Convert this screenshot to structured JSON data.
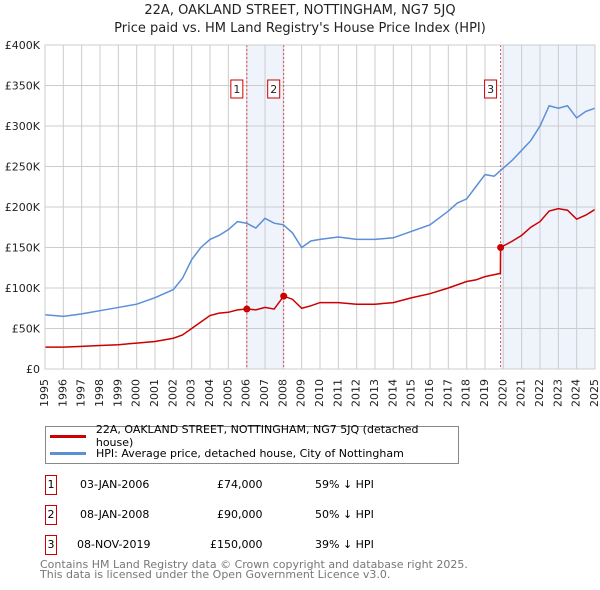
{
  "chart_data": {
    "type": "line",
    "title": "22A, OAKLAND STREET, NOTTINGHAM, NG7 5JQ",
    "subtitle": "Price paid vs. HM Land Registry's House Price Index (HPI)",
    "xlim": [
      1995,
      2025
    ],
    "ylim": [
      0,
      400000
    ],
    "yticks": [
      {
        "v": 0,
        "l": "£0"
      },
      {
        "v": 50000,
        "l": "£50K"
      },
      {
        "v": 100000,
        "l": "£100K"
      },
      {
        "v": 150000,
        "l": "£150K"
      },
      {
        "v": 200000,
        "l": "£200K"
      },
      {
        "v": 250000,
        "l": "£250K"
      },
      {
        "v": 300000,
        "l": "£300K"
      },
      {
        "v": 350000,
        "l": "£350K"
      },
      {
        "v": 400000,
        "l": "£400K"
      }
    ],
    "xticks": [
      "1995",
      "1996",
      "1997",
      "1998",
      "1999",
      "2000",
      "2001",
      "2002",
      "2003",
      "2004",
      "2005",
      "2006",
      "2007",
      "2008",
      "2009",
      "2010",
      "2011",
      "2012",
      "2013",
      "2014",
      "2015",
      "2016",
      "2017",
      "2018",
      "2019",
      "2020",
      "2021",
      "2022",
      "2023",
      "2024",
      "2025"
    ],
    "series": [
      {
        "name": "22A, OAKLAND STREET, NOTTINGHAM, NG7 5JQ (detached house)",
        "color": "#cc0000",
        "x": [
          1995,
          1996,
          1997,
          1998,
          1999,
          2000,
          2001,
          2002,
          2002.5,
          2003,
          2003.5,
          2004,
          2004.5,
          2005,
          2005.5,
          2006.01,
          2006.5,
          2007,
          2007.5,
          2008.02,
          2008.5,
          2009,
          2009.5,
          2010,
          2011,
          2012,
          2013,
          2014,
          2015,
          2016,
          2017,
          2018,
          2018.5,
          2019,
          2019.84,
          2019.85,
          2020.5,
          2021,
          2021.5,
          2022,
          2022.5,
          2023,
          2023.5,
          2024,
          2024.5,
          2025
        ],
        "y": [
          27000,
          27000,
          28000,
          29000,
          30000,
          32000,
          34000,
          38000,
          42000,
          50000,
          58000,
          66000,
          69000,
          70000,
          73000,
          74000,
          73000,
          76000,
          74000,
          90000,
          86000,
          75000,
          78000,
          82000,
          82000,
          80000,
          80000,
          82000,
          88000,
          93000,
          100000,
          108000,
          110000,
          114000,
          118000,
          150000,
          158000,
          165000,
          175000,
          182000,
          195000,
          198000,
          196000,
          185000,
          190000,
          197000
        ]
      },
      {
        "name": "HPI: Average price, detached house, City of Nottingham",
        "color": "#5b8fd6",
        "x": [
          1995,
          1996,
          1997,
          1998,
          1999,
          2000,
          2001,
          2002,
          2002.5,
          2003,
          2003.5,
          2004,
          2004.5,
          2005,
          2005.5,
          2006,
          2006.5,
          2007,
          2007.5,
          2008,
          2008.5,
          2009,
          2009.5,
          2010,
          2011,
          2012,
          2013,
          2014,
          2015,
          2016,
          2017,
          2017.5,
          2018,
          2018.5,
          2019,
          2019.5,
          2020,
          2020.5,
          2021,
          2021.5,
          2022,
          2022.5,
          2023,
          2023.5,
          2024,
          2024.5,
          2025
        ],
        "y": [
          67000,
          65000,
          68000,
          72000,
          76000,
          80000,
          88000,
          98000,
          112000,
          135000,
          150000,
          160000,
          165000,
          172000,
          182000,
          180000,
          174000,
          186000,
          180000,
          178000,
          168000,
          150000,
          158000,
          160000,
          163000,
          160000,
          160000,
          162000,
          170000,
          178000,
          195000,
          205000,
          210000,
          225000,
          240000,
          238000,
          248000,
          258000,
          270000,
          282000,
          300000,
          325000,
          322000,
          325000,
          310000,
          318000,
          322000
        ]
      }
    ],
    "sales": [
      {
        "n": "1",
        "x": 2006.01,
        "y": 74000
      },
      {
        "n": "2",
        "x": 2008.02,
        "y": 90000
      },
      {
        "n": "3",
        "x": 2019.85,
        "y": 150000
      }
    ],
    "shaded": [
      [
        2006.01,
        2008.02
      ],
      [
        2019.85,
        2025
      ]
    ]
  },
  "legend": [
    "22A, OAKLAND STREET, NOTTINGHAM, NG7 5JQ (detached house)",
    "HPI: Average price, detached house, City of Nottingham"
  ],
  "table": [
    {
      "n": "1",
      "date": "03-JAN-2006",
      "price": "£74,000",
      "hpi": "59% ↓ HPI"
    },
    {
      "n": "2",
      "date": "08-JAN-2008",
      "price": "£90,000",
      "hpi": "50% ↓ HPI"
    },
    {
      "n": "3",
      "date": "08-NOV-2019",
      "price": "£150,000",
      "hpi": "39% ↓ HPI"
    }
  ],
  "footer": [
    "Contains HM Land Registry data © Crown copyright and database right 2025.",
    "This data is licensed under the Open Government Licence v3.0."
  ]
}
